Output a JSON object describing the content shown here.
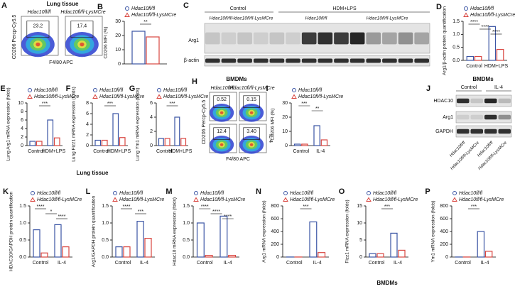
{
  "chart_data": [
    {
      "type": "bar",
      "panel": "B",
      "ylabel": "CD206 MFI (%)",
      "categories": [
        null
      ],
      "series": [
        {
          "name": "Hdac10fl/fl",
          "color": "#3a54a4",
          "values": [
            23
          ]
        },
        {
          "name": "Hdac10fl/fl-LysMCre",
          "color": "#d9453f",
          "values": [
            19
          ]
        }
      ],
      "ylim": [
        0,
        30
      ],
      "yticks": [
        0,
        10,
        20,
        30
      ],
      "annotations": [
        "**"
      ]
    },
    {
      "type": "bar",
      "panel": "D",
      "ylabel": "Arg1/β-actin protein quantification",
      "categories": [
        "Control",
        "HDM+LPS"
      ],
      "series": [
        {
          "name": "Hdac10fl/fl",
          "color": "#3a54a4",
          "values": [
            0.15,
            1.3
          ]
        },
        {
          "name": "Hdac10fl/fl-LysMCre",
          "color": "#d9453f",
          "values": [
            0.15,
            0.42
          ]
        }
      ],
      "ylim": [
        0,
        1.5
      ],
      "yticks": [
        {
          "value": 0,
          "label": "0.0"
        },
        0.5,
        {
          "value": 1,
          "label": "1.0"
        },
        1.5
      ],
      "annotations": [
        "****",
        "****",
        "****"
      ]
    },
    {
      "type": "bar",
      "panel": "E",
      "ylabel": "Lung Arg1 mRNA expression (folds)",
      "categories": [
        "Control",
        "HDM+LPS"
      ],
      "series": [
        {
          "name": "Hdac10fl/fl",
          "color": "#3a54a4",
          "values": [
            1,
            6
          ]
        },
        {
          "name": "Hdac10fl/fl-LysMCre",
          "color": "#d9453f",
          "values": [
            1,
            1.8
          ]
        }
      ],
      "ylim": [
        0,
        10
      ],
      "yticks": [
        0,
        2,
        4,
        6,
        8,
        10
      ],
      "annotations": [
        "***"
      ]
    },
    {
      "type": "bar",
      "panel": "F",
      "ylabel": "Lung Fizz1 mRNA expression (folds)",
      "categories": [
        "Control",
        "HDM+LPS"
      ],
      "series": [
        {
          "name": "Hdac10fl/fl",
          "color": "#3a54a4",
          "values": [
            1,
            6
          ]
        },
        {
          "name": "Hdac10fl/fl-LysMCre",
          "color": "#d9453f",
          "values": [
            1,
            1.5
          ]
        }
      ],
      "ylim": [
        0,
        8
      ],
      "yticks": [
        0,
        2,
        4,
        6,
        8
      ],
      "annotations": [
        "***"
      ]
    },
    {
      "type": "bar",
      "panel": "G",
      "ylabel": "Lung Ym1 mRNA expression (folds)",
      "categories": [
        "Control",
        "HDM+LPS"
      ],
      "series": [
        {
          "name": "Hdac10fl/fl",
          "color": "#3a54a4",
          "values": [
            1,
            4
          ]
        },
        {
          "name": "Hdac10fl/fl-LysMCre",
          "color": "#d9453f",
          "values": [
            1,
            1
          ]
        }
      ],
      "ylim": [
        0,
        6
      ],
      "yticks": [
        0,
        2,
        4,
        6
      ],
      "annotations": [
        "***"
      ]
    },
    {
      "type": "bar",
      "panel": "I",
      "ylabel": "CD206 MFI (%)",
      "categories": [
        "Control",
        "IL-4"
      ],
      "series": [
        {
          "name": "Hdac10fl/fl",
          "color": "#3a54a4",
          "values": [
            1,
            14
          ]
        },
        {
          "name": "Hdac10fl/fl-LysMCre",
          "color": "#d9453f",
          "values": [
            1,
            4
          ]
        }
      ],
      "ylim": [
        0,
        30
      ],
      "yticks": [
        0,
        10,
        20,
        30
      ],
      "annotations": [
        "***",
        "**"
      ]
    },
    {
      "type": "bar",
      "panel": "K",
      "ylabel": "HDAC10/GAPDH protein quantification",
      "categories": [
        "Control",
        "IL-4"
      ],
      "series": [
        {
          "name": "Hdac10fl/fl",
          "color": "#3a54a4",
          "values": [
            0.8,
            0.95
          ]
        },
        {
          "name": "Hdac10fl/fl-LysMCre",
          "color": "#d9453f",
          "values": [
            0.12,
            0.3
          ]
        }
      ],
      "ylim": [
        0,
        1.5
      ],
      "yticks": [
        {
          "value": 0,
          "label": "0.0"
        },
        0.5,
        {
          "value": 1,
          "label": "1.0"
        },
        1.5
      ],
      "annotations": [
        "****",
        "*",
        "****"
      ]
    },
    {
      "type": "bar",
      "panel": "L",
      "ylabel": "Arg1/GAPDH protein quantification",
      "categories": [
        "Control",
        "IL-4"
      ],
      "series": [
        {
          "name": "Hdac10fl/fl",
          "color": "#3a54a4",
          "values": [
            0.3,
            1.05
          ]
        },
        {
          "name": "Hdac10fl/fl-LysMCre",
          "color": "#d9453f",
          "values": [
            0.3,
            0.55
          ]
        }
      ],
      "ylim": [
        0,
        1.5
      ],
      "yticks": [
        {
          "value": 0,
          "label": "0.0"
        },
        0.5,
        {
          "value": 1,
          "label": "1.0"
        },
        1.5
      ],
      "annotations": [
        "****",
        "***"
      ]
    },
    {
      "type": "bar",
      "panel": "M",
      "ylabel": "Hdac10 mRNA expression (folds)",
      "categories": [
        "Control",
        "IL-4"
      ],
      "series": [
        {
          "name": "Hdac10fl/fl",
          "color": "#3a54a4",
          "values": [
            1,
            1.2
          ]
        },
        {
          "name": "Hdac10fl/fl-LysMCre",
          "color": "#d9453f",
          "values": [
            0.05,
            0.05
          ]
        }
      ],
      "ylim": [
        0,
        1.5
      ],
      "yticks": [
        {
          "value": 0,
          "label": "0.0"
        },
        0.5,
        {
          "value": 1,
          "label": "1.0"
        },
        1.5
      ],
      "annotations": [
        "****",
        "****",
        "****"
      ]
    },
    {
      "type": "bar",
      "panel": "N",
      "ylabel": "Arg1 mRNA expression (folds)",
      "categories": [
        "Control",
        "IL-4"
      ],
      "series": [
        {
          "name": "Hdac10fl/fl",
          "color": "#3a54a4",
          "values": [
            1,
            550
          ]
        },
        {
          "name": "Hdac10fl/fl-LysMCre",
          "color": "#d9453f",
          "values": [
            1,
            70
          ]
        }
      ],
      "ylim": [
        0,
        800
      ],
      "yticks": [
        0,
        200,
        400,
        600,
        800
      ],
      "annotations": [
        "***"
      ]
    },
    {
      "type": "bar",
      "panel": "O",
      "ylabel": "Fizz1 mRNA expression (folds)",
      "categories": [
        "Control",
        "IL-4"
      ],
      "series": [
        {
          "name": "Hdac10fl/fl",
          "color": "#3a54a4",
          "values": [
            1,
            7
          ]
        },
        {
          "name": "Hdac10fl/fl-LysMCre",
          "color": "#d9453f",
          "values": [
            1,
            2
          ]
        }
      ],
      "ylim": [
        0,
        15
      ],
      "yticks": [
        0,
        5,
        10,
        15
      ],
      "annotations": [
        "***"
      ]
    },
    {
      "type": "bar",
      "panel": "P",
      "ylabel": "Ym1 mRNA expression (folds)",
      "categories": [
        "Control",
        "IL-4"
      ],
      "series": [
        {
          "name": "Hdac10fl/fl",
          "color": "#3a54a4",
          "values": [
            1,
            400
          ]
        },
        {
          "name": "Hdac10fl/fl-LysMCre",
          "color": "#d9453f",
          "values": [
            1,
            90
          ]
        }
      ],
      "ylim": [
        0,
        800
      ],
      "yticks": [
        0,
        200,
        400,
        600,
        800
      ],
      "annotations": [
        "***"
      ]
    }
  ],
  "flow_lung": {
    "panel": "A",
    "title": "Lung tissue",
    "groups": [
      "Hdac10fl/fl",
      "Hdac10fl/fl-LysMCre"
    ],
    "gates": [
      "23.2",
      "17.4"
    ],
    "ylabel": "CD206 Percp-Cy5.5",
    "xlabel": "F4/80 APC"
  },
  "blot_lung": {
    "panel": "C",
    "groups": [
      "Control",
      "HDM+LPS"
    ],
    "lanes": [
      "Hdac10fl/fl",
      "Hdac10fl/fl-LysMCre",
      "Hdac10fl/fl",
      "Hdac10fl/fl-LysMCre"
    ],
    "proteins": [
      "Arg1",
      "β-actin"
    ]
  },
  "flow_bmdm": {
    "panel": "H",
    "title": "BMDMs",
    "groups": [
      "Hdac10fl/fl",
      "Hdac10fl/fl-LysMCre"
    ],
    "gates": [
      "0.52",
      "0.15",
      "12.4",
      "3.40"
    ],
    "condition": "IL-4",
    "ylabel": "CD206 Percp-Cy5.5",
    "xlabel": "F4/80 APC"
  },
  "blot_bmdm": {
    "panel": "J",
    "title": "BMDMs",
    "groups": [
      "Control",
      "IL-4"
    ],
    "lanes": [
      "Hdac10fl/fl",
      "Hdac10fl/fl-LysMCre",
      "Hdac10fl/fl",
      "Hdac10fl/fl-LysMCre"
    ],
    "proteins": [
      "HDAC10",
      "Arg1",
      "GAPDH"
    ]
  },
  "footers": [
    "Lung tissue",
    "BMDMs"
  ]
}
